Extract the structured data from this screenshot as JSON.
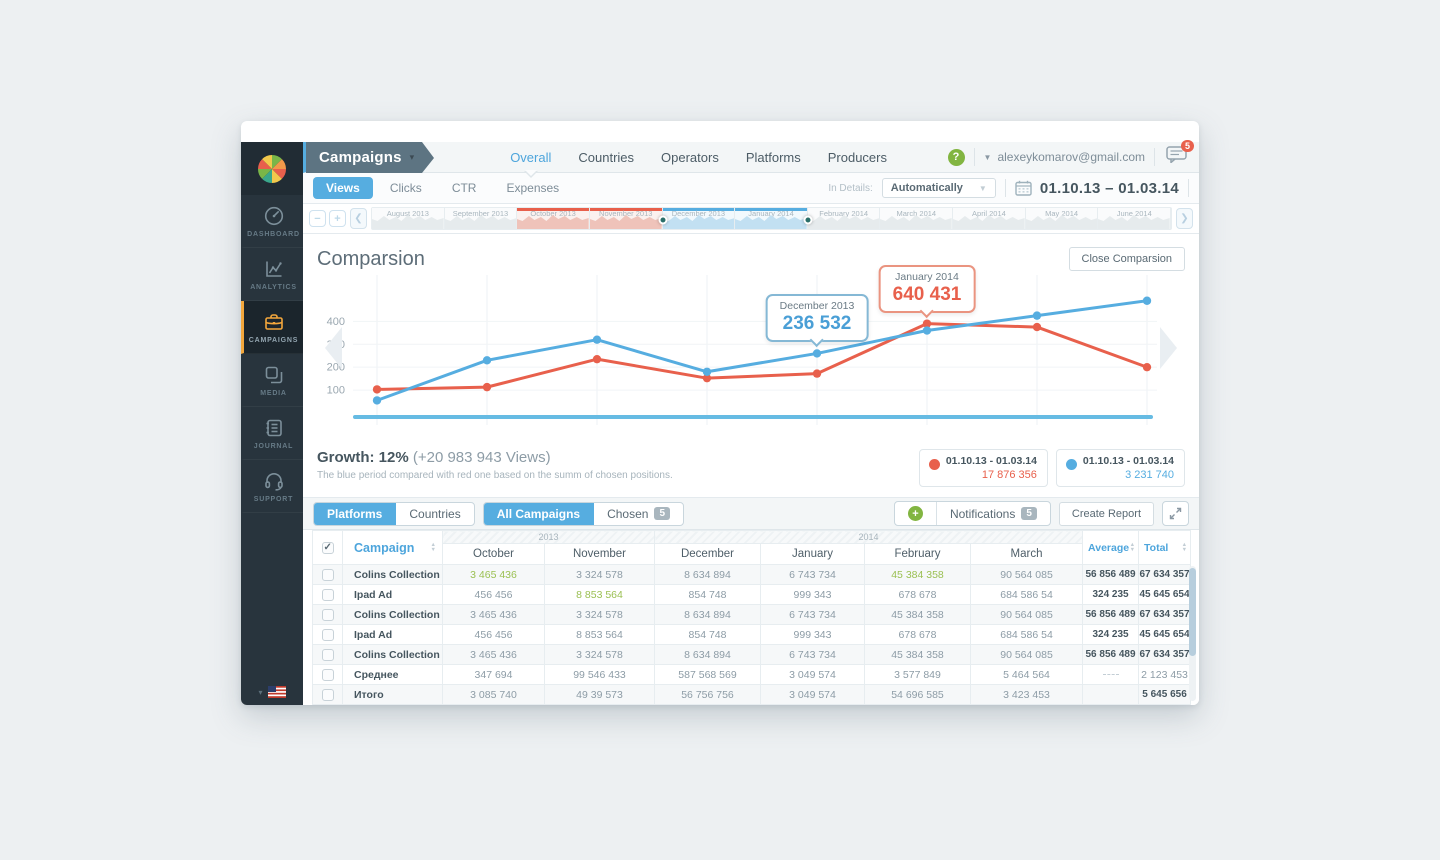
{
  "colors": {
    "accent_blue": "#56ade0",
    "accent_red": "#e8604c",
    "accent_green": "#82b541",
    "value_green": "#9bc053",
    "sidebar_active_orange": "#f3a73c"
  },
  "sidebar": {
    "items": [
      {
        "label": "DASHBOARD",
        "icon": "dashboard-icon",
        "active": false
      },
      {
        "label": "ANALYTICS",
        "icon": "analytics-icon",
        "active": false
      },
      {
        "label": "CAMPAIGNS",
        "icon": "campaigns-icon",
        "active": true
      },
      {
        "label": "MEDIA",
        "icon": "media-icon",
        "active": false
      },
      {
        "label": "JOURNAL",
        "icon": "journal-icon",
        "active": false
      },
      {
        "label": "SUPPORT",
        "icon": "support-icon",
        "active": false
      }
    ]
  },
  "header": {
    "title": "Campaigns",
    "nav": [
      {
        "label": "Overall",
        "active": true
      },
      {
        "label": "Countries",
        "active": false
      },
      {
        "label": "Operators",
        "active": false
      },
      {
        "label": "Platforms",
        "active": false
      },
      {
        "label": "Producers",
        "active": false
      }
    ],
    "help_label": "?",
    "user_email": "alexeykomarov@gmail.com",
    "messages_badge": "5"
  },
  "filters": {
    "metric_tabs": [
      {
        "label": "Views",
        "active": true
      },
      {
        "label": "Clicks",
        "active": false
      },
      {
        "label": "CTR",
        "active": false
      },
      {
        "label": "Expenses",
        "active": false
      }
    ],
    "in_details_label": "In Details:",
    "in_details_value": "Automatically",
    "date_range": "01.10.13 – 01.03.14"
  },
  "timeline": {
    "months": [
      {
        "label": "August 2013",
        "state": "none"
      },
      {
        "label": "September 2013",
        "state": "none"
      },
      {
        "label": "October 2013",
        "state": "red"
      },
      {
        "label": "November 2013",
        "state": "red"
      },
      {
        "label": "December 2013",
        "state": "blue"
      },
      {
        "label": "January 2014",
        "state": "blue"
      },
      {
        "label": "February 2014",
        "state": "none"
      },
      {
        "label": "March 2014",
        "state": "none"
      },
      {
        "label": "April 2014",
        "state": "none"
      },
      {
        "label": "May 2014",
        "state": "none"
      },
      {
        "label": "June 2014",
        "state": "none"
      }
    ]
  },
  "comparison": {
    "title": "Comparsion",
    "close_button": "Close Comparsion",
    "growth_label": "Growth: 12%",
    "growth_detail": " (+20 983 943 Views)",
    "growth_note": "The blue period compared with red one based on the summ of chosen positions.",
    "legend": [
      {
        "period": "01.10.13 - 01.03.14",
        "value": "17 876 356",
        "color": "#e8604c"
      },
      {
        "period": "01.10.13 - 01.03.14",
        "value": "3 231 740",
        "color": "#56ade0"
      }
    ]
  },
  "chart_data": {
    "type": "line",
    "x": [
      1,
      2,
      3,
      4,
      5,
      6,
      7,
      8
    ],
    "yticks": [
      100,
      200,
      300,
      400
    ],
    "ylim": [
      0,
      550
    ],
    "grid": true,
    "series": [
      {
        "name": "red period 01.10.13 - 01.03.14",
        "key": "red",
        "color": "#e8604c",
        "values": [
          103,
          113,
          235,
          152,
          172,
          390,
          375,
          200
        ]
      },
      {
        "name": "blue period 01.10.13 - 01.03.14",
        "key": "blue",
        "color": "#56ade0",
        "values": [
          55,
          230,
          320,
          180,
          260,
          360,
          425,
          490
        ]
      }
    ],
    "tooltips": [
      {
        "label": "December 2013",
        "value": "236 532",
        "series_index": 1,
        "point_index": 4
      },
      {
        "label": "January 2014",
        "value": "640 431",
        "series_index": 0,
        "point_index": 5
      }
    ]
  },
  "table_toolbar": {
    "view_toggle": [
      {
        "label": "Platforms",
        "active": true
      },
      {
        "label": "Countries",
        "active": false
      }
    ],
    "campaign_toggle": [
      {
        "label": "All Campaigns",
        "active": true
      },
      {
        "label": "Chosen",
        "badge": "5",
        "active": false
      }
    ],
    "notifications_label": "Notifications",
    "notifications_badge": "5",
    "create_report_label": "Create Report"
  },
  "table": {
    "campaign_header": "Campaign",
    "year_groups": [
      {
        "label": "2013",
        "span": 2
      },
      {
        "label": "2014",
        "span": 4
      }
    ],
    "month_headers": [
      "October",
      "November",
      "December",
      "January",
      "February",
      "March"
    ],
    "average_header": "Average",
    "total_header": "Total",
    "rows": [
      {
        "name": "Colins Collection",
        "values": [
          "3 465 436",
          "3 324 578",
          "8 634 894",
          "6 743 734",
          "45 384 358",
          "90 564 085"
        ],
        "green_cols": [
          0,
          4
        ],
        "average": "56 856 489",
        "total": "67 634 357",
        "bold": true
      },
      {
        "name": "Ipad Ad",
        "values": [
          "456 456",
          "8 853 564",
          "854 748",
          "999 343",
          "678 678",
          "684 586 54"
        ],
        "green_cols": [
          1
        ],
        "average": "324 235",
        "total": "45 645 654",
        "bold": true
      },
      {
        "name": "Colins Collection",
        "values": [
          "3 465 436",
          "3 324 578",
          "8 634 894",
          "6 743 734",
          "45 384 358",
          "90 564 085"
        ],
        "green_cols": [],
        "average": "56 856 489",
        "total": "67 634 357",
        "bold": true
      },
      {
        "name": "Ipad Ad",
        "values": [
          "456 456",
          "8 853 564",
          "854 748",
          "999 343",
          "678 678",
          "684 586 54"
        ],
        "green_cols": [],
        "average": "324 235",
        "total": "45 645 654",
        "bold": true
      },
      {
        "name": "Colins Collection",
        "values": [
          "3 465 436",
          "3 324 578",
          "8 634 894",
          "6 743 734",
          "45 384 358",
          "90 564 085"
        ],
        "green_cols": [],
        "average": "56 856 489",
        "total": "67 634 357",
        "bold": true
      },
      {
        "name": "Среднее",
        "values": [
          "347 694",
          "99 546 433",
          "587 568 569",
          "3 049 574",
          "3 577 849",
          "5 464 564"
        ],
        "green_cols": [],
        "average": "",
        "total": "2 123 453",
        "bold": false
      },
      {
        "name": "Итого",
        "values": [
          "3 085 740",
          "49 39 573",
          "56 756 756",
          "3 049 574",
          "54 696 585",
          "3 423 453"
        ],
        "green_cols": [],
        "average": "",
        "total": "5 645 656",
        "bold": true
      }
    ]
  }
}
